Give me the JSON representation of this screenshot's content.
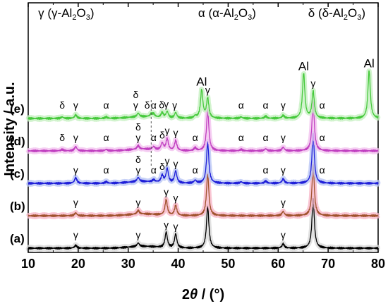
{
  "chart_data": {
    "type": "line",
    "xlabel_prefix": "2",
    "xlabel_theta": "θ",
    "xlabel_suffix": " / (°)",
    "ylabel": "Intensity / a.u.",
    "xlim": [
      10,
      80
    ],
    "xticks": [
      10,
      20,
      30,
      40,
      50,
      60,
      70,
      80
    ],
    "header": [
      {
        "symbol": "γ",
        "phase": "γ",
        "at": 12
      },
      {
        "symbol": "α",
        "phase": "α",
        "at": 44
      },
      {
        "symbol": "δ",
        "phase": "δ",
        "at": 66
      }
    ],
    "phase_name_base": "-Al",
    "phase_name_sub1": "2",
    "phase_name_mid": "O",
    "phase_name_sub2": "3",
    "series": [
      {
        "name": "(a)",
        "color": "#000000",
        "glow": "#d9d9d9",
        "offset": 0,
        "peaks": [
          [
            19.5,
            4
          ],
          [
            32.0,
            5
          ],
          [
            37.6,
            22
          ],
          [
            39.5,
            20
          ],
          [
            45.9,
            60
          ],
          [
            61.0,
            6
          ],
          [
            67.0,
            72
          ]
        ],
        "labels": [
          [
            19.5,
            "γ"
          ],
          [
            32.0,
            "γ"
          ],
          [
            37.6,
            "γ"
          ],
          [
            39.5,
            "γ"
          ],
          [
            61.0,
            "γ"
          ]
        ]
      },
      {
        "name": "(b)",
        "color": "#a0522d",
        "glow": "#f7b6c8",
        "offset": 1,
        "peaks": [
          [
            19.5,
            4
          ],
          [
            32.0,
            5
          ],
          [
            37.6,
            22
          ],
          [
            39.5,
            14
          ],
          [
            45.9,
            60
          ],
          [
            61.0,
            6
          ],
          [
            67.0,
            72
          ]
        ],
        "labels": [
          [
            19.5,
            "γ"
          ],
          [
            32.0,
            "γ"
          ],
          [
            37.6,
            "γ"
          ],
          [
            39.5,
            "γ"
          ],
          [
            61.0,
            "γ"
          ]
        ]
      },
      {
        "name": "(c)",
        "color": "#1f1fd8",
        "glow": "#b9c6f5",
        "offset": 2,
        "peaks": [
          [
            19.5,
            8
          ],
          [
            25.6,
            2
          ],
          [
            32.0,
            6
          ],
          [
            35.1,
            3
          ],
          [
            36.8,
            10
          ],
          [
            37.8,
            20
          ],
          [
            39.5,
            17
          ],
          [
            43.4,
            4
          ],
          [
            45.9,
            58
          ],
          [
            52.6,
            2
          ],
          [
            57.5,
            3
          ],
          [
            61.0,
            6
          ],
          [
            67.0,
            70
          ]
        ],
        "labels": [
          [
            19.5,
            "γ"
          ],
          [
            25.6,
            "α"
          ],
          [
            32.0,
            "δ|γ"
          ],
          [
            35.1,
            "α"
          ],
          [
            36.8,
            "δ"
          ],
          [
            37.8,
            "γ"
          ],
          [
            39.5,
            "γ"
          ],
          [
            43.4,
            "α"
          ],
          [
            57.5,
            "α"
          ],
          [
            61.0,
            "γ"
          ],
          [
            68.8,
            "α"
          ]
        ]
      },
      {
        "name": "(d)",
        "color": "#c03fc0",
        "glow": "#f2c2ef",
        "offset": 3,
        "peaks": [
          [
            16.8,
            2
          ],
          [
            19.5,
            6
          ],
          [
            25.6,
            2
          ],
          [
            32.0,
            5
          ],
          [
            35.1,
            4
          ],
          [
            36.8,
            10
          ],
          [
            37.8,
            16
          ],
          [
            39.5,
            14
          ],
          [
            43.4,
            4
          ],
          [
            45.9,
            58
          ],
          [
            52.6,
            2
          ],
          [
            57.5,
            3
          ],
          [
            61.0,
            5
          ],
          [
            67.0,
            70
          ]
        ],
        "labels": [
          [
            16.8,
            "δ"
          ],
          [
            19.5,
            "γ"
          ],
          [
            25.6,
            "α"
          ],
          [
            32.0,
            "δ|γ"
          ],
          [
            35.1,
            "α"
          ],
          [
            36.8,
            "δ"
          ],
          [
            37.8,
            "γ"
          ],
          [
            39.5,
            "γ"
          ],
          [
            43.4,
            "α"
          ],
          [
            52.6,
            "α"
          ],
          [
            57.5,
            "α"
          ],
          [
            61.0,
            "γ"
          ],
          [
            68.8,
            "α"
          ]
        ]
      },
      {
        "name": "(e)",
        "color": "#45c93b",
        "glow": "#c5f0c1",
        "offset": 4,
        "peaks": [
          [
            16.8,
            2
          ],
          [
            19.5,
            5
          ],
          [
            25.6,
            2
          ],
          [
            32.0,
            5
          ],
          [
            34.6,
            4
          ],
          [
            35.1,
            4
          ],
          [
            36.8,
            7
          ],
          [
            37.8,
            9
          ],
          [
            39.5,
            8
          ],
          [
            43.4,
            3
          ],
          [
            44.7,
            40
          ],
          [
            45.9,
            28
          ],
          [
            52.6,
            2
          ],
          [
            57.5,
            3
          ],
          [
            61.0,
            4
          ],
          [
            65.1,
            64
          ],
          [
            67.0,
            38
          ],
          [
            78.2,
            68
          ]
        ],
        "labels": [
          [
            16.8,
            "δ"
          ],
          [
            19.5,
            "γ"
          ],
          [
            25.6,
            "α"
          ],
          [
            31.5,
            "δ|γ"
          ],
          [
            33.8,
            "δ"
          ],
          [
            35.1,
            "α"
          ],
          [
            36.7,
            "δ"
          ],
          [
            37.6,
            "γ"
          ],
          [
            39.3,
            "γ"
          ],
          [
            45.9,
            "γ"
          ],
          [
            52.6,
            "α"
          ],
          [
            57.5,
            "α"
          ],
          [
            61.0,
            "γ"
          ],
          [
            67.0,
            "γ"
          ],
          [
            68.8,
            "α"
          ]
        ]
      }
    ],
    "al_labels": [
      {
        "x": 44.7,
        "text": "Al"
      },
      {
        "x": 65.1,
        "text": "Al"
      },
      {
        "x": 78.2,
        "text": "Al"
      }
    ],
    "dashed_line_x": 34.6
  }
}
